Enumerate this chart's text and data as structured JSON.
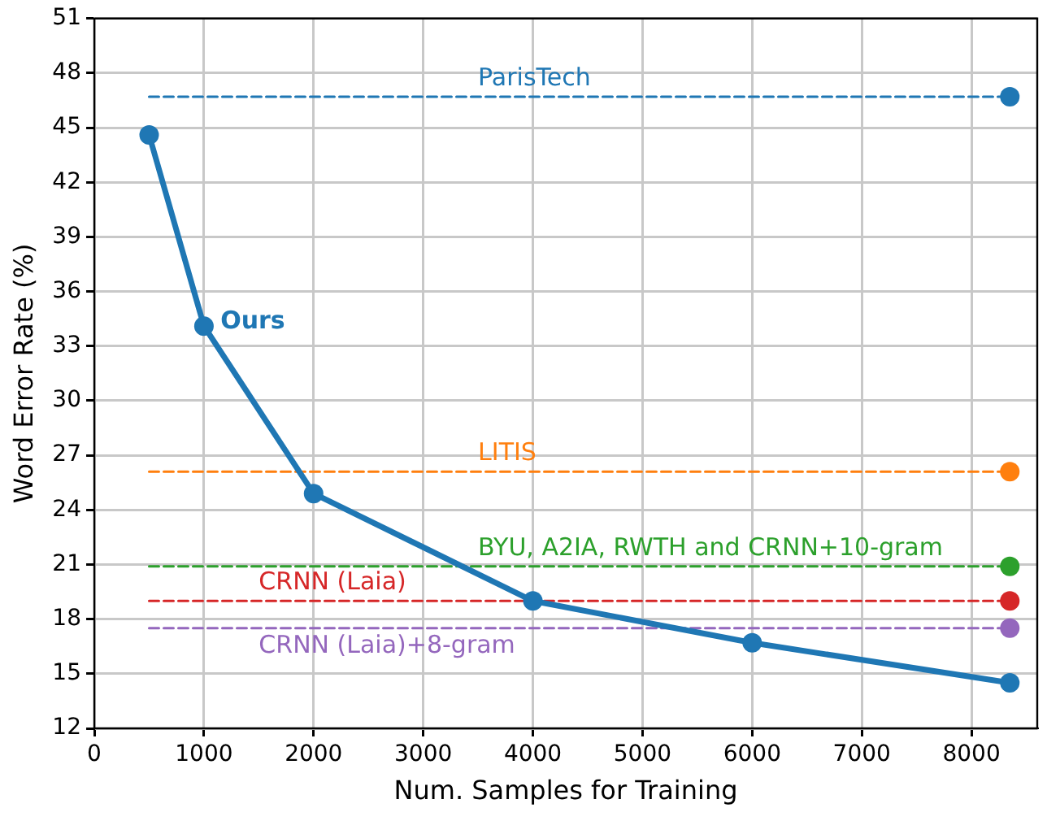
{
  "chart_data": {
    "type": "line",
    "xlabel": "Num. Samples for Training",
    "ylabel": "Word Error Rate (%)",
    "xlim": [
      0,
      8600
    ],
    "xticks": [
      0,
      1000,
      2000,
      3000,
      4000,
      5000,
      6000,
      7000,
      8000
    ],
    "ylim": [
      12,
      51
    ],
    "yticks": [
      12,
      15,
      18,
      21,
      24,
      27,
      30,
      33,
      36,
      39,
      42,
      45,
      48,
      51
    ],
    "grid": true,
    "legend": false,
    "series": [
      {
        "color": "#1f77b4",
        "marker": "circle",
        "line_style": "solid",
        "x": [
          500,
          1000,
          2000,
          4000,
          6000,
          8350
        ],
        "values": [
          44.6,
          34.1,
          24.9,
          19.0,
          16.7,
          14.5
        ]
      },
      {
        "type": "line",
        "color": "#1f77b4",
        "marker": "none",
        "line_style": "dashed",
        "x": [
          500,
          8350
        ],
        "values": [
          46.7,
          46.7
        ]
      },
      {
        "type": "line",
        "color": "#ff7f0e",
        "marker": "none",
        "line_style": "dashed",
        "x": [
          500,
          8350
        ],
        "values": [
          26.1,
          26.1
        ]
      },
      {
        "type": "line",
        "color": "#2ca02c",
        "marker": "none",
        "line_style": "dashed",
        "x": [
          500,
          8350
        ],
        "values": [
          20.9,
          20.9
        ]
      },
      {
        "type": "line",
        "color": "#d62728",
        "marker": "none",
        "line_style": "dashed",
        "x": [
          500,
          8350
        ],
        "values": [
          19.0,
          19.0
        ]
      },
      {
        "type": "line",
        "color": "#9467bd",
        "marker": "none",
        "line_style": "dashed",
        "x": [
          500,
          8350
        ],
        "values": [
          17.5,
          17.5
        ]
      },
      {
        "type": "scatter",
        "marker": "circle",
        "colors": [
          "#1f77b4",
          "#ff7f0e",
          "#2ca02c",
          "#d62728",
          "#9467bd"
        ],
        "x": [
          8350,
          8350,
          8350,
          8350,
          8350
        ],
        "values": [
          46.7,
          26.1,
          20.9,
          19.0,
          17.5
        ]
      }
    ],
    "annotations": [
      {
        "text": "Ours",
        "x": 1150,
        "y": 34.3
      },
      {
        "text": "ParisTech",
        "x": 3500,
        "y": 46.7
      },
      {
        "text": "LITIS",
        "x": 3500,
        "y": 26.1
      },
      {
        "text": "BYU, A2IA, RWTH and CRNN+10-gram",
        "x": 3500,
        "y": 20.9
      },
      {
        "text": "CRNN (Laia)",
        "x": 1500,
        "y": 19.0
      },
      {
        "text": "CRNN (Laia)+8-gram",
        "x": 1500,
        "y": 17.5
      }
    ]
  }
}
